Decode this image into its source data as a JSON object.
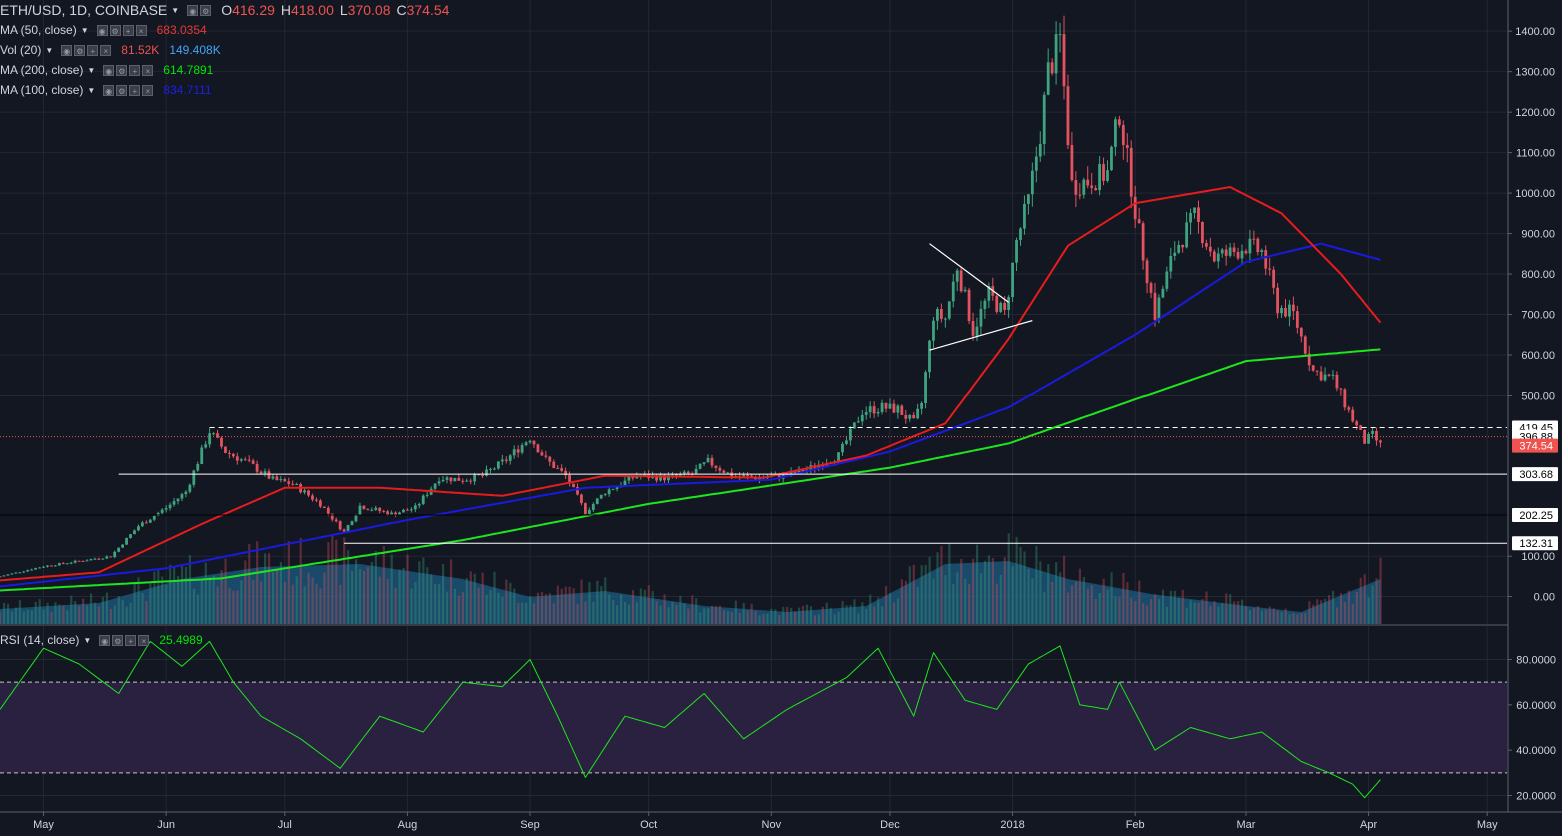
{
  "header": {
    "symbol": "ETH/USD, 1D, COINBASE",
    "ohlc": [
      {
        "k": "O",
        "v": "416.29"
      },
      {
        "k": "H",
        "v": "418.00"
      },
      {
        "k": "L",
        "v": "370.08"
      },
      {
        "k": "C",
        "v": "374.54"
      }
    ]
  },
  "indicators": [
    {
      "label": "MA (50, close)",
      "values": [
        "683.0354"
      ],
      "colors": [
        "#e53935"
      ]
    },
    {
      "label": "Vol (20)",
      "values": [
        "81.52K",
        "149.408K"
      ],
      "colors": [
        "#ef5350",
        "#42a5f5"
      ]
    },
    {
      "label": "MA (200, close)",
      "values": [
        "614.7891"
      ],
      "colors": [
        "#00e600"
      ]
    },
    {
      "label": "MA (100, close)",
      "values": [
        "834.7111"
      ],
      "colors": [
        "#1e1ee6"
      ]
    }
  ],
  "rsi_legend": {
    "label": "RSI (14, close)",
    "value": "25.4989",
    "color": "#00e600"
  },
  "colors": {
    "up": "#3fa37f",
    "down": "#e2525f",
    "ma50": "#e81c1c",
    "ma100": "#1a1ae0",
    "ma200": "#1ee61e",
    "rsi": "#1ee61e",
    "volume_fill": "#1d6690",
    "rsi_band": "#2a2040",
    "background": "#131722",
    "grid": "#232733"
  },
  "chart_data": {
    "type": "candlestick",
    "x_range": [
      "2017-04-20",
      "2018-05-06"
    ],
    "x_ticks": [
      {
        "date": "2017-05-01",
        "label": "May"
      },
      {
        "date": "2017-06-01",
        "label": "Jun"
      },
      {
        "date": "2017-07-01",
        "label": "Jul"
      },
      {
        "date": "2017-08-01",
        "label": "Aug"
      },
      {
        "date": "2017-09-01",
        "label": "Sep"
      },
      {
        "date": "2017-10-01",
        "label": "Oct"
      },
      {
        "date": "2017-11-01",
        "label": "Nov"
      },
      {
        "date": "2017-12-01",
        "label": "Dec"
      },
      {
        "date": "2018-01-01",
        "label": "2018"
      },
      {
        "date": "2018-02-01",
        "label": "Feb"
      },
      {
        "date": "2018-03-01",
        "label": "Mar"
      },
      {
        "date": "2018-04-01",
        "label": "Apr"
      },
      {
        "date": "2018-05-01",
        "label": "May"
      }
    ],
    "price_axis": {
      "ticks": [
        "1400.00",
        "1300.00",
        "1200.00",
        "1100.00",
        "1000.00",
        "900.00",
        "800.00",
        "700.00",
        "600.00",
        "500.00",
        "100.00",
        "0.00"
      ]
    },
    "price_anchors": [
      [
        "2017-04-20",
        50
      ],
      [
        "2017-05-01",
        75
      ],
      [
        "2017-05-10",
        88
      ],
      [
        "2017-05-18",
        100
      ],
      [
        "2017-05-25",
        175
      ],
      [
        "2017-06-01",
        220
      ],
      [
        "2017-06-06",
        260
      ],
      [
        "2017-06-12",
        410
      ],
      [
        "2017-06-16",
        360
      ],
      [
        "2017-06-22",
        330
      ],
      [
        "2017-06-28",
        290
      ],
      [
        "2017-07-03",
        280
      ],
      [
        "2017-07-10",
        230
      ],
      [
        "2017-07-16",
        160
      ],
      [
        "2017-07-20",
        225
      ],
      [
        "2017-07-28",
        205
      ],
      [
        "2017-08-03",
        220
      ],
      [
        "2017-08-09",
        295
      ],
      [
        "2017-08-15",
        290
      ],
      [
        "2017-08-20",
        300
      ],
      [
        "2017-08-26",
        340
      ],
      [
        "2017-09-01",
        395
      ],
      [
        "2017-09-05",
        340
      ],
      [
        "2017-09-10",
        300
      ],
      [
        "2017-09-15",
        210
      ],
      [
        "2017-09-20",
        260
      ],
      [
        "2017-09-28",
        300
      ],
      [
        "2017-10-05",
        295
      ],
      [
        "2017-10-12",
        305
      ],
      [
        "2017-10-16",
        335
      ],
      [
        "2017-10-22",
        300
      ],
      [
        "2017-10-29",
        295
      ],
      [
        "2017-11-04",
        300
      ],
      [
        "2017-11-10",
        315
      ],
      [
        "2017-11-18",
        350
      ],
      [
        "2017-11-24",
        460
      ],
      [
        "2017-11-29",
        470
      ],
      [
        "2017-12-03",
        465
      ],
      [
        "2017-12-07",
        430
      ],
      [
        "2017-12-09",
        480
      ],
      [
        "2017-12-12",
        700
      ],
      [
        "2017-12-15",
        690
      ],
      [
        "2017-12-18",
        820
      ],
      [
        "2017-12-22",
        660
      ],
      [
        "2017-12-26",
        750
      ],
      [
        "2017-12-30",
        700
      ],
      [
        "2018-01-02",
        880
      ],
      [
        "2018-01-05",
        980
      ],
      [
        "2018-01-08",
        1150
      ],
      [
        "2018-01-10",
        1300
      ],
      [
        "2018-01-13",
        1380
      ],
      [
        "2018-01-16",
        1020
      ],
      [
        "2018-01-20",
        1030
      ],
      [
        "2018-01-25",
        1050
      ],
      [
        "2018-01-28",
        1200
      ],
      [
        "2018-02-02",
        900
      ],
      [
        "2018-02-06",
        700
      ],
      [
        "2018-02-11",
        860
      ],
      [
        "2018-02-16",
        940
      ],
      [
        "2018-02-21",
        840
      ],
      [
        "2018-02-25",
        850
      ],
      [
        "2018-03-01",
        870
      ],
      [
        "2018-03-05",
        855
      ],
      [
        "2018-03-09",
        720
      ],
      [
        "2018-03-13",
        700
      ],
      [
        "2018-03-18",
        560
      ],
      [
        "2018-03-23",
        540
      ],
      [
        "2018-03-28",
        440
      ],
      [
        "2018-03-31",
        385
      ],
      [
        "2018-04-02",
        400
      ],
      [
        "2018-04-04",
        375
      ]
    ],
    "ma50": [
      [
        "2017-04-20",
        40
      ],
      [
        "2017-05-15",
        60
      ],
      [
        "2017-06-10",
        180
      ],
      [
        "2017-07-01",
        270
      ],
      [
        "2017-07-25",
        270
      ],
      [
        "2017-08-25",
        250
      ],
      [
        "2017-09-20",
        300
      ],
      [
        "2017-10-30",
        295
      ],
      [
        "2017-11-25",
        350
      ],
      [
        "2017-12-15",
        430
      ],
      [
        "2017-12-31",
        640
      ],
      [
        "2018-01-15",
        870
      ],
      [
        "2018-02-01",
        975
      ],
      [
        "2018-02-25",
        1015
      ],
      [
        "2018-03-10",
        950
      ],
      [
        "2018-03-25",
        800
      ],
      [
        "2018-04-04",
        680
      ]
    ],
    "ma100": [
      [
        "2017-04-20",
        25
      ],
      [
        "2017-06-01",
        70
      ],
      [
        "2017-08-01",
        190
      ],
      [
        "2017-09-15",
        270
      ],
      [
        "2017-11-01",
        290
      ],
      [
        "2017-12-01",
        360
      ],
      [
        "2017-12-31",
        470
      ],
      [
        "2018-02-01",
        650
      ],
      [
        "2018-03-01",
        830
      ],
      [
        "2018-03-20",
        875
      ],
      [
        "2018-04-04",
        835
      ]
    ],
    "ma200": [
      [
        "2017-04-20",
        15
      ],
      [
        "2017-06-15",
        45
      ],
      [
        "2017-08-15",
        140
      ],
      [
        "2017-10-01",
        230
      ],
      [
        "2017-12-01",
        320
      ],
      [
        "2017-12-31",
        380
      ],
      [
        "2018-02-01",
        490
      ],
      [
        "2018-03-01",
        585
      ],
      [
        "2018-04-04",
        614
      ]
    ],
    "volume_profile": [
      [
        "2017-04-20",
        0.1
      ],
      [
        "2017-05-15",
        0.14
      ],
      [
        "2017-06-05",
        0.3
      ],
      [
        "2017-06-25",
        0.38
      ],
      [
        "2017-07-20",
        0.4
      ],
      [
        "2017-08-15",
        0.3
      ],
      [
        "2017-09-01",
        0.18
      ],
      [
        "2017-09-20",
        0.22
      ],
      [
        "2017-10-15",
        0.12
      ],
      [
        "2017-11-05",
        0.08
      ],
      [
        "2017-11-25",
        0.12
      ],
      [
        "2017-12-15",
        0.4
      ],
      [
        "2017-12-31",
        0.42
      ],
      [
        "2018-01-15",
        0.3
      ],
      [
        "2018-02-05",
        0.2
      ],
      [
        "2018-03-01",
        0.12
      ],
      [
        "2018-03-15",
        0.08
      ],
      [
        "2018-04-04",
        0.3
      ]
    ],
    "rsi": [
      [
        "2017-04-20",
        58
      ],
      [
        "2017-05-01",
        85
      ],
      [
        "2017-05-10",
        78
      ],
      [
        "2017-05-20",
        65
      ],
      [
        "2017-05-28",
        88
      ],
      [
        "2017-06-05",
        77
      ],
      [
        "2017-06-12",
        88
      ],
      [
        "2017-06-18",
        70
      ],
      [
        "2017-06-25",
        55
      ],
      [
        "2017-07-05",
        45
      ],
      [
        "2017-07-15",
        32
      ],
      [
        "2017-07-25",
        55
      ],
      [
        "2017-08-05",
        48
      ],
      [
        "2017-08-15",
        70
      ],
      [
        "2017-08-25",
        68
      ],
      [
        "2017-09-01",
        80
      ],
      [
        "2017-09-08",
        55
      ],
      [
        "2017-09-15",
        28
      ],
      [
        "2017-09-25",
        55
      ],
      [
        "2017-10-05",
        50
      ],
      [
        "2017-10-15",
        65
      ],
      [
        "2017-10-25",
        45
      ],
      [
        "2017-11-05",
        58
      ],
      [
        "2017-11-20",
        72
      ],
      [
        "2017-11-28",
        85
      ],
      [
        "2017-12-07",
        55
      ],
      [
        "2017-12-12",
        83
      ],
      [
        "2017-12-20",
        62
      ],
      [
        "2017-12-28",
        58
      ],
      [
        "2018-01-05",
        78
      ],
      [
        "2018-01-13",
        86
      ],
      [
        "2018-01-18",
        60
      ],
      [
        "2018-01-25",
        58
      ],
      [
        "2018-01-28",
        70
      ],
      [
        "2018-02-06",
        40
      ],
      [
        "2018-02-15",
        50
      ],
      [
        "2018-02-25",
        45
      ],
      [
        "2018-03-05",
        48
      ],
      [
        "2018-03-15",
        35
      ],
      [
        "2018-03-22",
        30
      ],
      [
        "2018-03-28",
        25
      ],
      [
        "2018-03-31",
        19
      ],
      [
        "2018-04-04",
        27
      ]
    ],
    "rsi_axis": {
      "ticks": [
        "80.0000",
        "60.0000",
        "40.0000",
        "20.0000"
      ],
      "bands": [
        30,
        70
      ]
    },
    "levels": [
      {
        "value": 419.45,
        "label": "419.45",
        "style": "dashed",
        "start": "2017-06-12"
      },
      {
        "value": 396.88,
        "label": "396.88",
        "style": "dotted-red",
        "start": "2017-04-20"
      },
      {
        "value": 374.54,
        "label": "374.54",
        "style": "current",
        "start": null
      },
      {
        "value": 303.68,
        "label": "303.68",
        "style": "solid",
        "start": "2017-05-20"
      },
      {
        "value": 202.25,
        "label": "202.25",
        "style": "solid-black",
        "start": null
      },
      {
        "value": 132.31,
        "label": "132.31",
        "style": "solid",
        "start": "2017-07-16"
      }
    ],
    "trendlines": [
      {
        "from": [
          "2017-12-11",
          875
        ],
        "to": [
          "2017-12-31",
          730
        ]
      },
      {
        "from": [
          "2017-12-11",
          612
        ],
        "to": [
          "2018-01-06",
          685
        ]
      }
    ]
  }
}
